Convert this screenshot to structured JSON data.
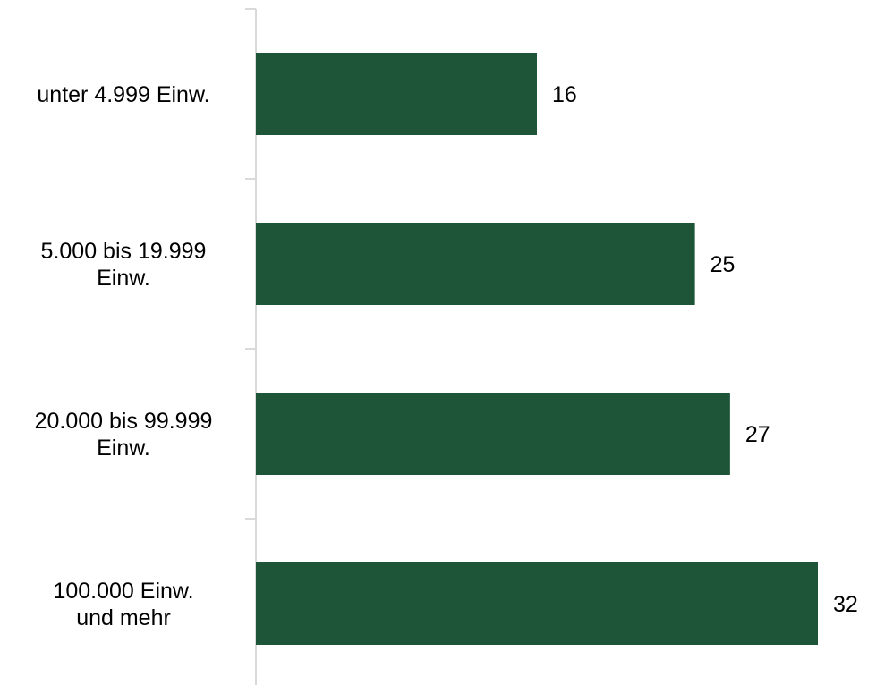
{
  "chart_data": {
    "type": "bar",
    "orientation": "horizontal",
    "categories": [
      [
        "unter 4.999 Einw."
      ],
      [
        "5.000 bis 19.999",
        "Einw."
      ],
      [
        "20.000 bis 99.999",
        "Einw."
      ],
      [
        "100.000 Einw.",
        "und mehr"
      ]
    ],
    "values": [
      16,
      25,
      27,
      32
    ],
    "data_labels": [
      "16",
      "25",
      "27",
      "32"
    ],
    "xlim": [
      0,
      32
    ],
    "bar_color": "#1e5539",
    "axis_color": "#d9d9d9",
    "grid": false,
    "legend": "none"
  }
}
